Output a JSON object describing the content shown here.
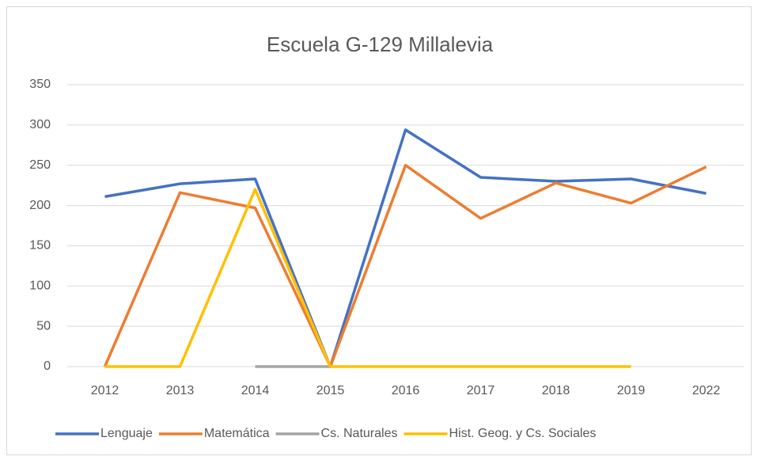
{
  "chart_data": {
    "type": "line",
    "title": "Escuela G-129 Millalevia",
    "categories": [
      "2012",
      "2013",
      "2014",
      "2015",
      "2016",
      "2017",
      "2018",
      "2019",
      "2022"
    ],
    "series": [
      {
        "name": "Lenguaje",
        "color": "#4472c4",
        "values": [
          211,
          227,
          233,
          0,
          294,
          235,
          230,
          233,
          215
        ]
      },
      {
        "name": "Matemática",
        "color": "#ed7d31",
        "values": [
          0,
          216,
          197,
          0,
          250,
          184,
          228,
          203,
          248
        ]
      },
      {
        "name": "Cs. Naturales",
        "color": "#a5a5a5",
        "values": [
          null,
          null,
          0,
          0,
          null,
          null,
          null,
          null,
          null
        ]
      },
      {
        "name": "Hist. Geog. y Cs. Sociales",
        "color": "#ffc000",
        "values": [
          0,
          0,
          220,
          0,
          0,
          0,
          0,
          0,
          null
        ]
      }
    ],
    "ylim": [
      0,
      350
    ],
    "yticks": [
      0,
      50,
      100,
      150,
      200,
      250,
      300,
      350
    ],
    "grid": true,
    "legend": "bottom"
  }
}
